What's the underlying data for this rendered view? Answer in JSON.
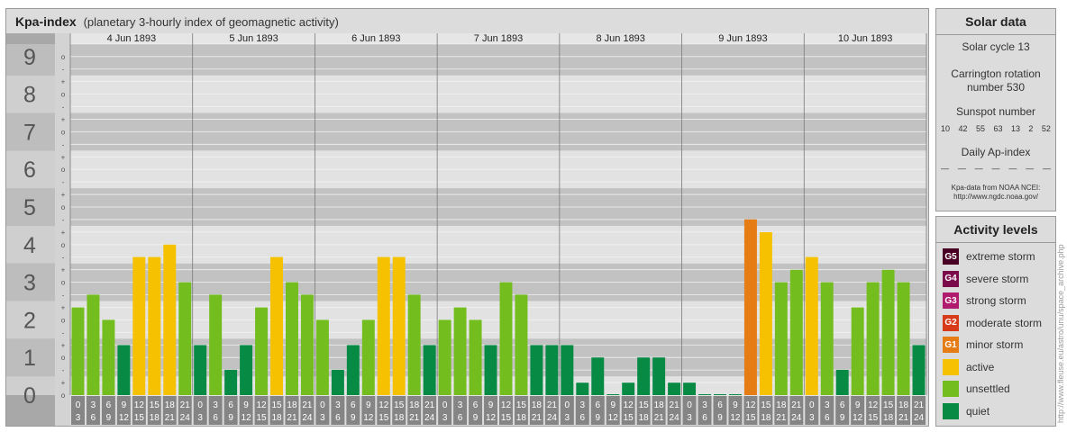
{
  "header": {
    "title": "Kpa-index",
    "subtitle": "(planetary 3-hourly index of geomagnetic activity)"
  },
  "chart_data": {
    "type": "bar",
    "title": "Kpa-index",
    "subtitle": "(planetary 3-hourly index of geomagnetic activity)",
    "days": [
      "4 Jun 1893",
      "5 Jun 1893",
      "6 Jun 1893",
      "7 Jun 1893",
      "8 Jun 1893",
      "9 Jun 1893",
      "10 Jun 1893"
    ],
    "interval_labels": [
      [
        "0",
        "3"
      ],
      [
        "3",
        "6"
      ],
      [
        "6",
        "9"
      ],
      [
        "9",
        "12"
      ],
      [
        "12",
        "15"
      ],
      [
        "15",
        "18"
      ],
      [
        "18",
        "21"
      ],
      [
        "21",
        "24"
      ]
    ],
    "y_tick_labels": [
      "0",
      "1",
      "2",
      "3",
      "4",
      "5",
      "6",
      "7",
      "8",
      "9"
    ],
    "y_subtick_labels": [
      "o",
      "+",
      "-"
    ],
    "ylim": [
      0,
      9.33
    ],
    "values": [
      2.33,
      2.67,
      2.0,
      1.33,
      3.67,
      3.67,
      4.0,
      3.0,
      1.33,
      2.67,
      0.67,
      1.33,
      2.33,
      3.67,
      3.0,
      2.67,
      2.0,
      0.67,
      1.33,
      2.0,
      3.67,
      3.67,
      2.67,
      1.33,
      2.0,
      2.33,
      2.0,
      1.33,
      3.0,
      2.67,
      1.33,
      1.33,
      1.33,
      0.33,
      1.0,
      0.0,
      0.33,
      1.0,
      1.0,
      0.33,
      0.33,
      0.0,
      0.0,
      0.0,
      4.67,
      4.33,
      3.0,
      3.33,
      3.67,
      3.0,
      0.67,
      2.33,
      3.0,
      3.33,
      3.0,
      1.33
    ],
    "levels": [
      "unsettled",
      "unsettled",
      "unsettled",
      "quiet",
      "active",
      "active",
      "active",
      "unsettled",
      "quiet",
      "unsettled",
      "quiet",
      "quiet",
      "unsettled",
      "active",
      "unsettled",
      "unsettled",
      "unsettled",
      "quiet",
      "quiet",
      "unsettled",
      "active",
      "active",
      "unsettled",
      "quiet",
      "unsettled",
      "unsettled",
      "unsettled",
      "quiet",
      "unsettled",
      "unsettled",
      "quiet",
      "quiet",
      "quiet",
      "quiet",
      "quiet",
      "quiet",
      "quiet",
      "quiet",
      "quiet",
      "quiet",
      "quiet",
      "quiet",
      "quiet",
      "quiet",
      "minor storm",
      "active",
      "unsettled",
      "unsettled",
      "active",
      "unsettled",
      "quiet",
      "unsettled",
      "unsettled",
      "unsettled",
      "unsettled",
      "quiet"
    ],
    "colors": {
      "quiet": "#068a44",
      "unsettled": "#73be1e",
      "active": "#f5c100",
      "minor storm": "#e67c14",
      "moderate storm": "#d83b1a",
      "strong storm": "#b11b6e",
      "severe storm": "#7b0a4a",
      "extreme storm": "#4a0024"
    },
    "grid": true
  },
  "solar": {
    "title": "Solar data",
    "cycle": "Solar cycle 13",
    "carrington_line1": "Carrington rotation",
    "carrington_line2": "number 530",
    "sunspot_label": "Sunspot number",
    "sunspot_values": [
      "10",
      "42",
      "55",
      "63",
      "13",
      "2",
      "52"
    ],
    "ap_label": "Daily Ap-index",
    "ap_values": [
      "—",
      "—",
      "—",
      "—",
      "—",
      "—",
      "—"
    ],
    "source_line1": "Kpa-data from NOAA NCEI:",
    "source_line2": "http://www.ngdc.noaa.gov/"
  },
  "activity": {
    "title": "Activity levels",
    "items": [
      {
        "badge": "G5",
        "label": "extreme storm",
        "color": "#4a0024"
      },
      {
        "badge": "G4",
        "label": "severe storm",
        "color": "#7b0a4a"
      },
      {
        "badge": "G3",
        "label": "strong storm",
        "color": "#b11b6e"
      },
      {
        "badge": "G2",
        "label": "moderate storm",
        "color": "#d83b1a"
      },
      {
        "badge": "G1",
        "label": "minor storm",
        "color": "#e67c14"
      },
      {
        "badge": "",
        "label": "active",
        "color": "#f5c100"
      },
      {
        "badge": "",
        "label": "unsettled",
        "color": "#73be1e"
      },
      {
        "badge": "",
        "label": "quiet",
        "color": "#068a44"
      }
    ]
  },
  "watermark": "http://www.fleuse.eu/astro/unu/space_archive.php"
}
